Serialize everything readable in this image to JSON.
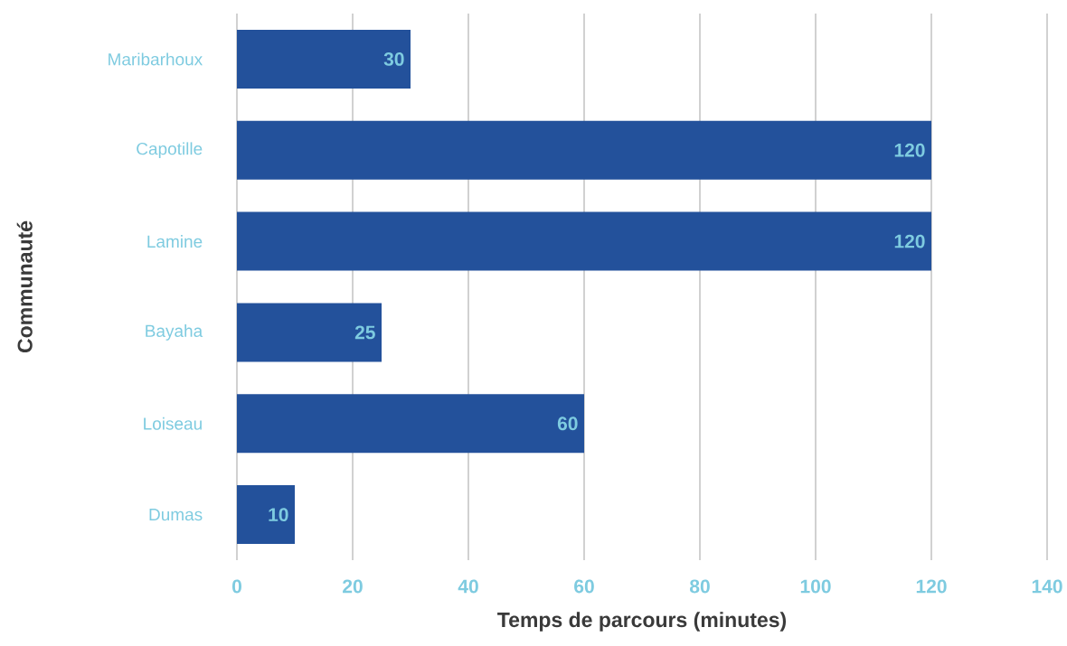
{
  "chart_data": {
    "type": "bar",
    "orientation": "horizontal",
    "xlabel": "Temps de parcours (minutes)",
    "ylabel": "Communauté",
    "categories": [
      "Maribarhoux",
      "Capotille",
      "Lamine",
      "Bayaha",
      "Loiseau",
      "Dumas"
    ],
    "values": [
      30,
      120,
      120,
      25,
      60,
      10
    ],
    "color": "#23519b",
    "xlim": [
      0,
      140
    ],
    "xticks": [
      0,
      20,
      40,
      60,
      80,
      100,
      120,
      140
    ],
    "grid": "x",
    "data_labels": true
  }
}
